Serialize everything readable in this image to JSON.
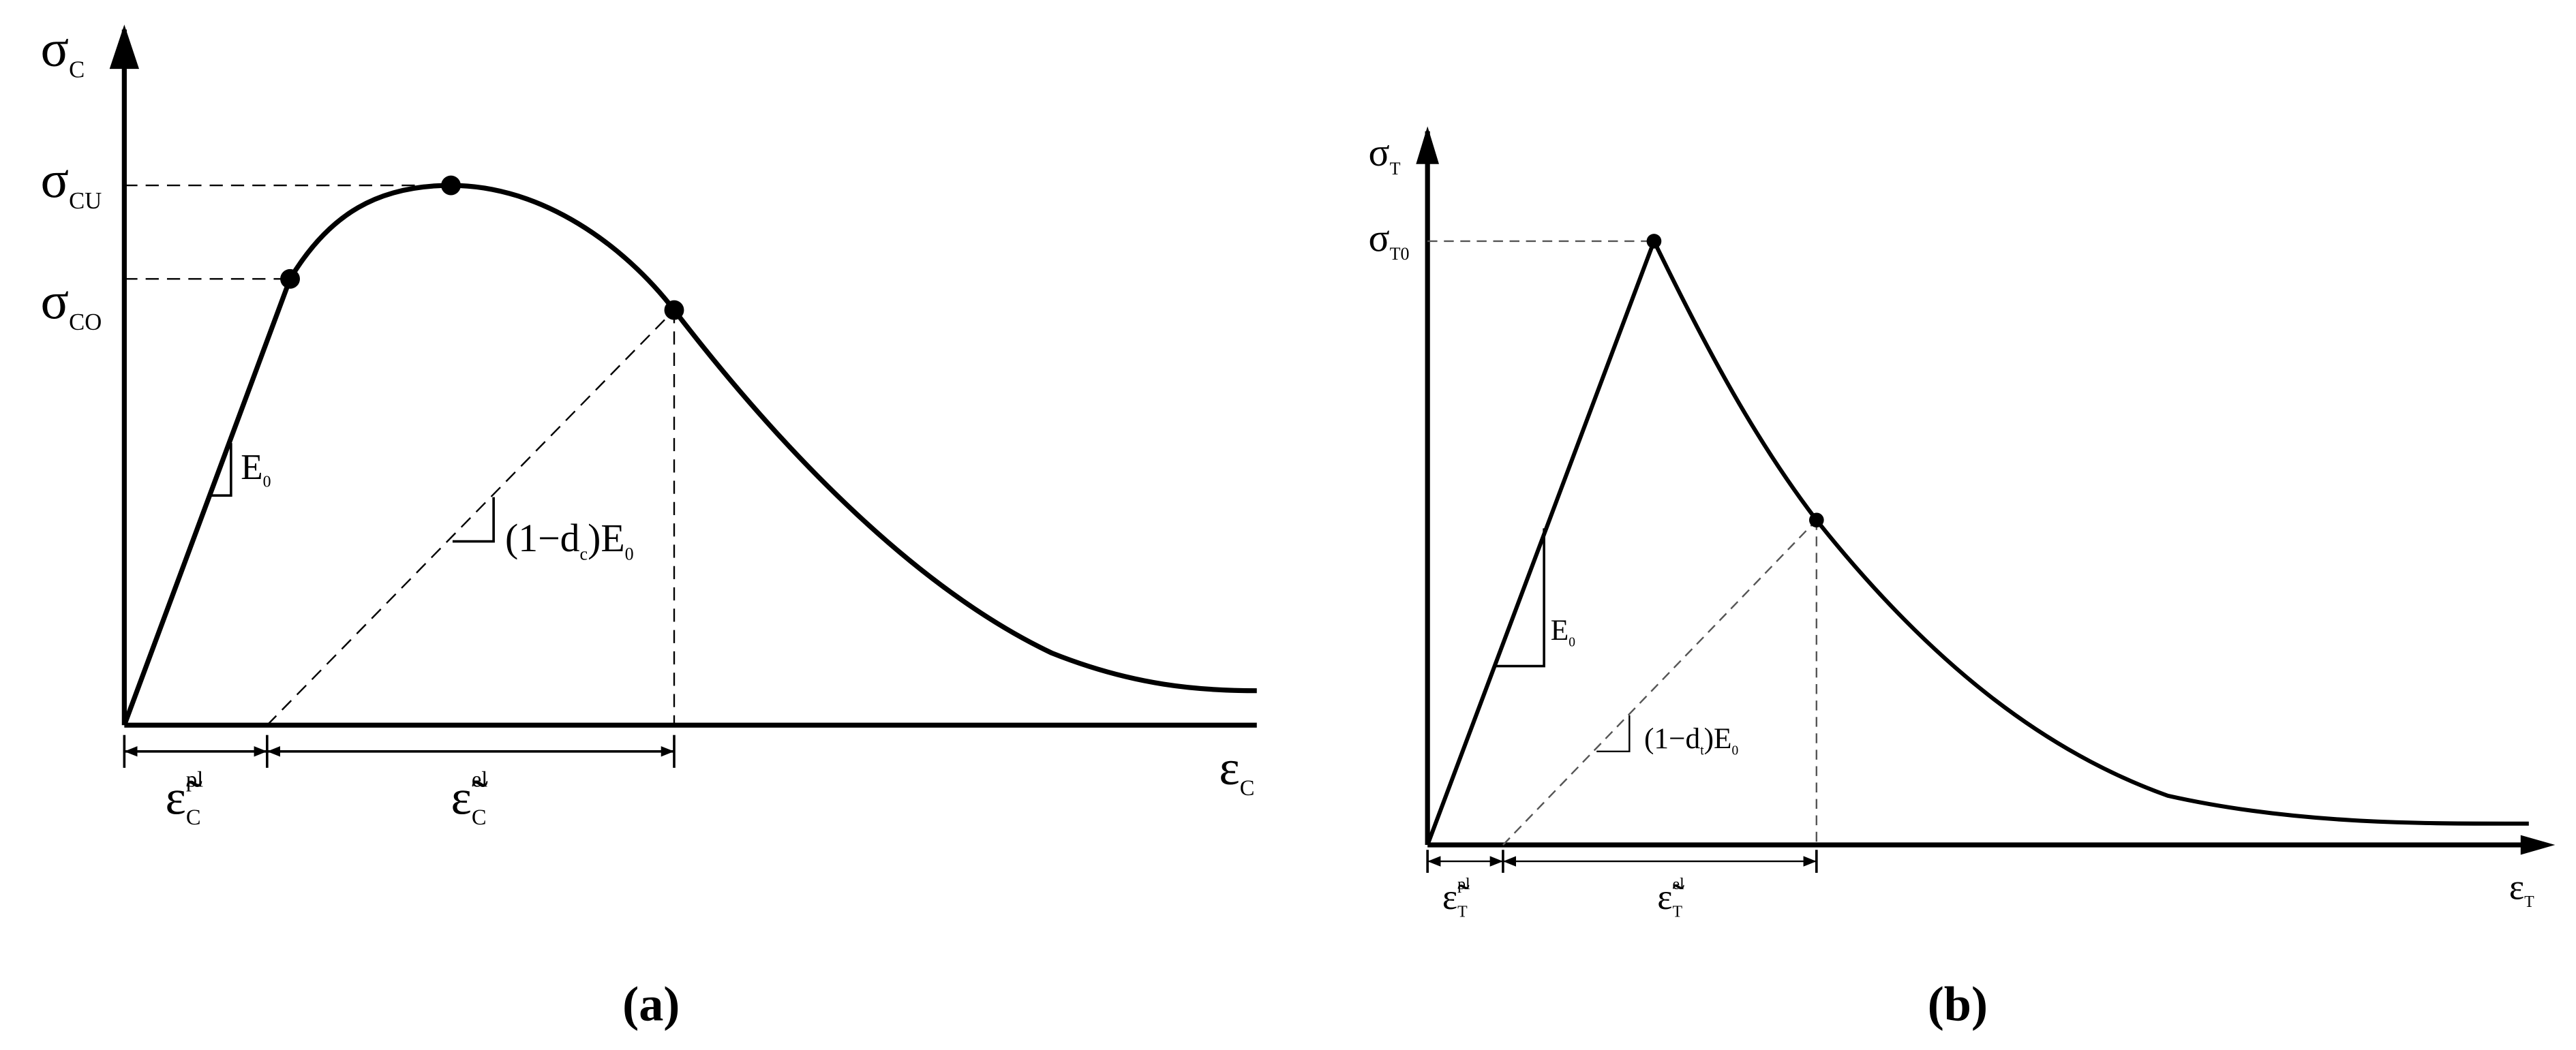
{
  "panel_a": {
    "y_axis_label": [
      {
        "text": "σ"
      },
      {
        "sub": "C"
      }
    ],
    "peak_label": [
      {
        "text": "σ"
      },
      {
        "sub": "CU"
      }
    ],
    "yield_label": [
      {
        "text": "σ"
      },
      {
        "sub": "CO"
      }
    ],
    "x_axis_label": [
      {
        "text": "ε"
      },
      {
        "sub": "C"
      }
    ],
    "slope_label": [
      {
        "text": "E"
      },
      {
        "sub": "0"
      }
    ],
    "damaged_slope_label": [
      {
        "text": "(1−d"
      },
      {
        "sub": "c"
      },
      {
        "text": ")E"
      },
      {
        "sub": "0"
      }
    ],
    "plastic_strain_label": [
      {
        "text": "ε̃"
      },
      {
        "sup": "pl"
      },
      {
        "sub": "C"
      }
    ],
    "elastic_strain_label": [
      {
        "text": "ε̃"
      },
      {
        "sup": "el"
      },
      {
        "sub": "C"
      }
    ],
    "caption": "(a)"
  },
  "panel_b": {
    "y_axis_label": [
      {
        "text": "σ"
      },
      {
        "sub": "T"
      }
    ],
    "peak_label": [
      {
        "text": "σ"
      },
      {
        "sub": "T0"
      }
    ],
    "x_axis_label": [
      {
        "text": "ε"
      },
      {
        "sub": "T"
      }
    ],
    "slope_label": [
      {
        "text": "E"
      },
      {
        "sub": "0"
      }
    ],
    "damaged_slope_label": [
      {
        "text": "(1−d"
      },
      {
        "sub": "t"
      },
      {
        "text": ")E"
      },
      {
        "sub": "0"
      }
    ],
    "plastic_strain_label": [
      {
        "text": "ε̃"
      },
      {
        "sup": "pl"
      },
      {
        "sub": "T"
      }
    ],
    "elastic_strain_label": [
      {
        "text": "ε̃"
      },
      {
        "sup": "el"
      },
      {
        "sub": "T"
      }
    ],
    "caption": "(b)"
  }
}
